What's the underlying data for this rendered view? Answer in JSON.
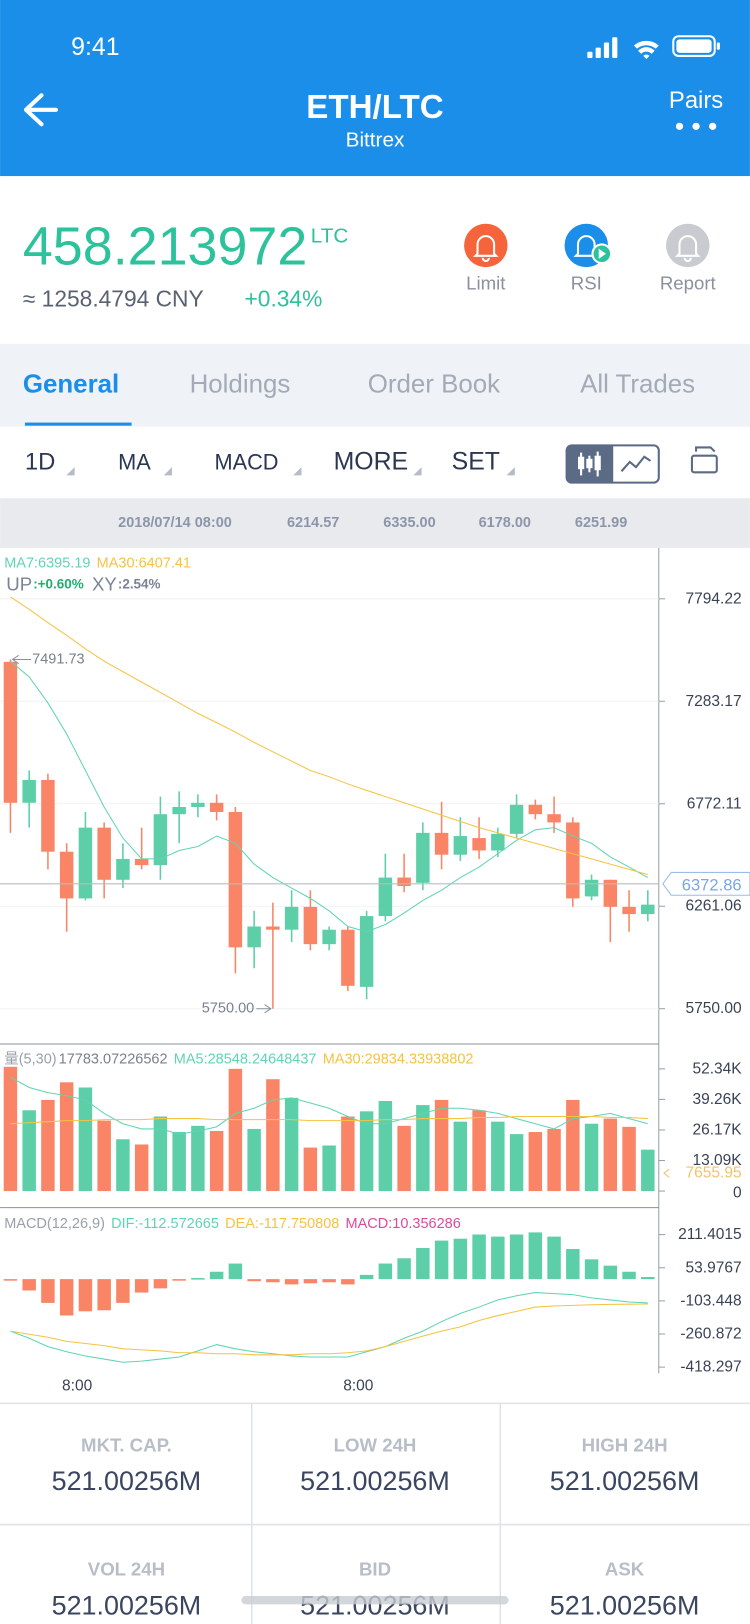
{
  "status_bar": {
    "time": "9:41"
  },
  "header": {
    "title": "ETH/LTC",
    "subtitle": "Bittrex",
    "action": "Pairs"
  },
  "price": {
    "value": 458.213972,
    "unit": "LTC",
    "converted": "≈ 1258.4794 CNY",
    "change": "+0.34%"
  },
  "alerts": [
    "Limit",
    "RSI",
    "Report"
  ],
  "tabs": [
    "General",
    "Holdings",
    "Order Book",
    "All Trades"
  ],
  "toolbar": [
    "1D",
    "MA",
    "MACD",
    "MORE",
    "SET"
  ],
  "info_bar": [
    "2018/07/14 08:00",
    "6214.57",
    "6335.00",
    "6178.00",
    "6251.99"
  ],
  "chart_data": [
    {
      "type": "candlestick",
      "up_color": "#5ccfa9",
      "down_color": "#fa8566",
      "open": [
        7480,
        6777,
        6891,
        6533,
        6300,
        6653,
        6393,
        6497,
        6466,
        6720,
        6756,
        6777,
        6731,
        6056,
        6160,
        6144,
        6258,
        6072,
        6144,
        5859,
        6212,
        6404,
        6378,
        6627,
        6518,
        6601,
        6539,
        6622,
        6767,
        6720,
        6679,
        6310,
        6393,
        6258,
        6222
      ],
      "high": [
        7491.73,
        6938,
        6922,
        6575,
        6731,
        6679,
        6575,
        6653,
        6808,
        6834,
        6819,
        6819,
        6756,
        6238,
        6279,
        6341,
        6341,
        6160,
        6160,
        6238,
        6523,
        6523,
        6679,
        6782,
        6705,
        6705,
        6653,
        6819,
        6793,
        6808,
        6705,
        6419,
        6393,
        6341,
        6341
      ],
      "low": [
        6627,
        6653,
        6445,
        6134,
        6290,
        6300,
        6352,
        6445,
        6393,
        6575,
        6705,
        6689,
        5926,
        5952,
        5750,
        6082,
        6041,
        6041,
        5838,
        5797,
        6186,
        6331,
        6341,
        6445,
        6487,
        6497,
        6507,
        6601,
        6694,
        6627,
        6258,
        6290,
        6082,
        6134,
        6186
      ],
      "close": [
        6777,
        6891,
        6533,
        6300,
        6653,
        6393,
        6497,
        6466,
        6720,
        6756,
        6777,
        6731,
        6056,
        6160,
        6144,
        6258,
        6072,
        6144,
        5864,
        6212,
        6404,
        6362,
        6627,
        6518,
        6611,
        6539,
        6622,
        6767,
        6720,
        6679,
        6300,
        6393,
        6258,
        6222,
        6269
      ],
      "series": [
        {
          "name": "MA7:6395.19",
          "color": "#5fd4b4",
          "values": [
            7483,
            7405,
            7275,
            7120,
            6938,
            6756,
            6601,
            6497,
            6497,
            6539,
            6559,
            6611,
            6575,
            6471,
            6404,
            6352,
            6300,
            6238,
            6160,
            6134,
            6170,
            6227,
            6290,
            6341,
            6404,
            6456,
            6523,
            6590,
            6642,
            6653,
            6611,
            6575,
            6507,
            6456,
            6404
          ]
        },
        {
          "name": "MA30:6407.41",
          "color": "#f5c342",
          "values": [
            7804,
            7742,
            7675,
            7612,
            7545,
            7483,
            7431,
            7379,
            7327,
            7275,
            7223,
            7177,
            7130,
            7078,
            7031,
            6985,
            6938,
            6907,
            6871,
            6839,
            6808,
            6777,
            6746,
            6715,
            6684,
            6653,
            6627,
            6601,
            6575,
            6549,
            6523,
            6497,
            6471,
            6445,
            6419
          ]
        }
      ],
      "indicators": [
        {
          "name": "UP",
          "value": ":+0.60%",
          "color": "#1fae6e"
        },
        {
          "name": "XY",
          "value": ":2.54%",
          "color": "#7a8296"
        }
      ],
      "ylim": [
        5574,
        8043
      ],
      "yticks": [
        {
          "value": 5750,
          "label": "5750.00"
        },
        6261.06,
        6772.11,
        7283.17,
        7794.22
      ],
      "grid": true,
      "high_marker": {
        "index": 0,
        "value": 7491.73
      },
      "low_marker": {
        "index": 14,
        "value": 5750,
        "label": "5750.00"
      },
      "last_price": 6372.86
    },
    {
      "type": "bar",
      "up_color": "#5ccfa9",
      "down_color": "#fa8566",
      "legend": "量(5,30)",
      "last": 17783.07226562,
      "values": [
        53230,
        34600,
        39035,
        46580,
        44360,
        30165,
        22180,
        19960,
        31940,
        25285,
        27945,
        25730,
        52345,
        26615,
        47910,
        39925,
        18630,
        19520,
        31940,
        34155,
        38590,
        27945,
        36820,
        39035,
        29720,
        34600,
        29720,
        24400,
        25285,
        26615,
        39035,
        28835,
        31050,
        27500,
        17745
      ],
      "series": [
        {
          "name": "MA5:28548.24648437",
          "color": "#5fd4b4",
          "values": [
            48800,
            44360,
            42140,
            40810,
            39035,
            33270,
            28835,
            26615,
            26615,
            24400,
            25730,
            27500,
            33270,
            35490,
            39035,
            39925,
            37705,
            35490,
            31940,
            28835,
            28835,
            31050,
            33270,
            35490,
            35490,
            34600,
            33270,
            31050,
            28835,
            26615,
            31050,
            31940,
            33270,
            31050,
            28835
          ]
        },
        {
          "name": "MA30:29834.33938802",
          "color": "#f5c342",
          "values": [
            28835,
            29280,
            29720,
            30165,
            30165,
            30610,
            30610,
            30610,
            31050,
            31050,
            31050,
            30610,
            30610,
            30610,
            30610,
            30610,
            30165,
            30165,
            30165,
            30165,
            30610,
            30610,
            31050,
            31050,
            31050,
            31495,
            31495,
            31940,
            31940,
            31940,
            31940,
            31940,
            31495,
            31495,
            31050
          ]
        }
      ],
      "ylim": [
        0,
        62100
      ],
      "yticks": [
        0,
        {
          "value": 13090,
          "label": "13.09K"
        },
        {
          "value": 26170,
          "label": "26.17K"
        },
        {
          "value": 39260,
          "label": "39.26K"
        },
        {
          "value": 52340,
          "label": "52.34K"
        }
      ],
      "last_value": 7655.95
    },
    {
      "type": "macd",
      "up_color": "#5ccfa9",
      "down_color": "#fa8566",
      "legend": "MACD(12,26,9)",
      "value_name": "MACD:10.356286",
      "value_color": "#e0489c",
      "values": [
        -5,
        -54,
        -113,
        -173,
        -153,
        -148,
        -113,
        -64,
        -44,
        -5,
        5,
        35,
        74,
        -10,
        -15,
        -25,
        -20,
        -15,
        -25,
        20,
        74,
        99,
        148,
        183,
        192,
        212,
        202,
        212,
        222,
        202,
        143,
        94,
        64,
        35,
        10
      ],
      "series": [
        {
          "name": "DIF:-112.572665",
          "color": "#5fd4b4",
          "values": [
            -247,
            -281,
            -321,
            -345,
            -365,
            -380,
            -395,
            -390,
            -380,
            -370,
            -341,
            -311,
            -331,
            -345,
            -355,
            -365,
            -370,
            -370,
            -370,
            -345,
            -321,
            -281,
            -247,
            -202,
            -163,
            -133,
            -99,
            -79,
            -64,
            -69,
            -74,
            -89,
            -99,
            -109,
            -113
          ]
        },
        {
          "name": "DEA:-117.750808",
          "color": "#f5c342",
          "values": [
            -247,
            -262,
            -276,
            -296,
            -306,
            -316,
            -331,
            -336,
            -341,
            -350,
            -350,
            -355,
            -355,
            -360,
            -360,
            -360,
            -355,
            -355,
            -350,
            -341,
            -321,
            -296,
            -271,
            -247,
            -227,
            -197,
            -173,
            -153,
            -133,
            -128,
            -125,
            -122,
            -120,
            -119,
            -118
          ]
        }
      ],
      "ylim": [
        -447.9,
        329.8
      ],
      "yticks": [
        -418.297,
        -260.872,
        -103.448,
        53.9767,
        211.4015
      ],
      "categories": [
        null,
        null,
        null,
        null,
        "8:00",
        null,
        null,
        null,
        null,
        null,
        null,
        null,
        null,
        null,
        null,
        null,
        null,
        null,
        null,
        "8:00",
        null,
        null,
        null,
        null,
        null,
        null,
        null,
        null,
        null,
        null,
        null,
        null,
        null,
        null,
        null
      ]
    }
  ],
  "stats": [
    {
      "label": "MKT. CAP.",
      "value": "521.00256M"
    },
    {
      "label": "LOW 24H",
      "value": "521.00256M"
    },
    {
      "label": "HIGH 24H",
      "value": "521.00256M"
    },
    {
      "label": "VOL 24H",
      "value": "521.00256M"
    },
    {
      "label": "BID",
      "value": "521.00256M"
    },
    {
      "label": "ASK",
      "value": "521.00256M"
    }
  ]
}
